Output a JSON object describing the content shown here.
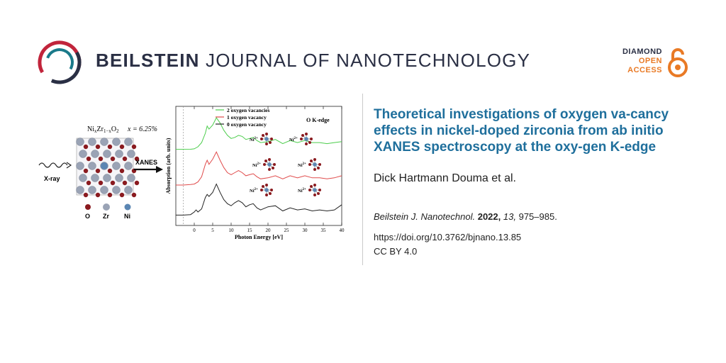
{
  "header": {
    "journal_bold": "BEILSTEIN",
    "journal_light": "JOURNAL OF NANOTECHNOLOGY",
    "open_access": [
      "DIAMOND",
      "OPEN",
      "ACCESS"
    ],
    "colors": {
      "journal": "#2a2f44",
      "diamond": "#2a2f44",
      "open_access": "#e97a25",
      "logo_red": "#c1243b",
      "logo_teal": "#1a7a8a"
    }
  },
  "article": {
    "title": "Theoretical investigations of oxygen va-cancy effects in nickel-doped zirconia from ab initio XANES spectroscopy at the oxy-gen K-edge",
    "authors": "Dick Hartmann Douma et al.",
    "citation": {
      "journal": "Beilstein J. Nanotechnol.",
      "year": "2022,",
      "volume": "13,",
      "pages": "975–985."
    },
    "doi": "https://doi.org/10.3762/bjnano.13.85",
    "license": "CC BY 4.0",
    "title_color": "#1f6f9c"
  },
  "graphical_abstract": {
    "formula": "NixZr1−xO2",
    "formula_parts": {
      "base1": "Ni",
      "sub1": "x",
      "base2": "Zr",
      "sub2": "1−x",
      "base3": "O",
      "sub3": "2"
    },
    "concentration": "x = 6.25%",
    "xray_label": "X-ray",
    "xanes_label": "XANES",
    "atom_legend": [
      {
        "label": "O",
        "color": "#8a1a1f"
      },
      {
        "label": "Zr",
        "color": "#9aa3b5"
      },
      {
        "label": "Ni",
        "color": "#5b86b3"
      }
    ],
    "ion_labels": [
      "Ni2+",
      "Ni2+",
      "Ni2+",
      "Ni2+",
      "Ni2+",
      "Ni2+"
    ]
  },
  "chart_data": {
    "type": "line",
    "title": "O K-edge",
    "xlabel": "Photon Energy [eV]",
    "ylabel": "Absorption (arb. units)",
    "xlim": [
      -5,
      40
    ],
    "xticks": [
      0,
      5,
      10,
      15,
      20,
      25,
      30,
      35,
      40
    ],
    "legend_position": "top-left",
    "series": [
      {
        "name": "2 oxygen vacancies",
        "color": "#4ccd4c",
        "x": [
          -5,
          -3,
          -1,
          0,
          1,
          2,
          3,
          3.5,
          4,
          5,
          6,
          7,
          8,
          9,
          10,
          11,
          12,
          13,
          14,
          15,
          16,
          17,
          18,
          20,
          22,
          24,
          26,
          28,
          30,
          32,
          34,
          36,
          38,
          40
        ],
        "y": [
          6.35,
          6.35,
          6.36,
          6.4,
          6.6,
          7.0,
          7.9,
          8.6,
          8.3,
          8.7,
          9.4,
          8.9,
          8.2,
          7.7,
          7.4,
          7.5,
          7.7,
          7.6,
          7.3,
          7.4,
          7.5,
          7.2,
          7.0,
          7.1,
          7.3,
          6.9,
          7.2,
          7.0,
          7.2,
          7.0,
          7.0,
          6.9,
          7.0,
          7.1
        ]
      },
      {
        "name": "1 oxygen vacancy",
        "color": "#e04b4b",
        "x": [
          -5,
          -3,
          -1,
          0,
          1,
          2,
          3,
          3.5,
          4,
          5,
          6,
          7,
          8,
          9,
          10,
          11,
          12,
          13,
          14,
          15,
          16,
          17,
          18,
          20,
          22,
          24,
          26,
          28,
          30,
          32,
          34,
          36,
          38,
          40
        ],
        "y": [
          2.9,
          2.9,
          2.95,
          3.0,
          3.2,
          3.7,
          4.9,
          5.3,
          4.9,
          5.4,
          6.1,
          5.3,
          4.6,
          4.1,
          3.9,
          4.1,
          4.3,
          4.1,
          3.8,
          3.9,
          4.0,
          3.7,
          3.5,
          3.6,
          3.8,
          3.5,
          3.8,
          3.6,
          3.8,
          3.6,
          3.6,
          3.5,
          3.6,
          3.8
        ]
      },
      {
        "name": "0 oxygen vacancy",
        "color": "#222222",
        "x": [
          -5,
          -3,
          -1,
          0,
          0.5,
          1,
          2,
          3,
          3.5,
          4,
          5,
          6,
          7,
          8,
          9,
          10,
          11,
          12,
          13,
          14,
          15,
          16,
          17,
          18,
          20,
          22,
          24,
          26,
          28,
          30,
          32,
          34,
          36,
          38,
          40
        ],
        "y": [
          0.0,
          0.0,
          0.05,
          0.3,
          0.5,
          0.3,
          0.6,
          1.7,
          2.0,
          1.8,
          2.2,
          3.0,
          2.2,
          1.5,
          1.1,
          0.9,
          1.2,
          1.4,
          1.2,
          0.8,
          1.0,
          1.1,
          0.7,
          0.5,
          0.8,
          0.9,
          0.4,
          0.7,
          0.5,
          0.6,
          0.4,
          0.5,
          0.4,
          0.5,
          1.0
        ]
      }
    ]
  }
}
